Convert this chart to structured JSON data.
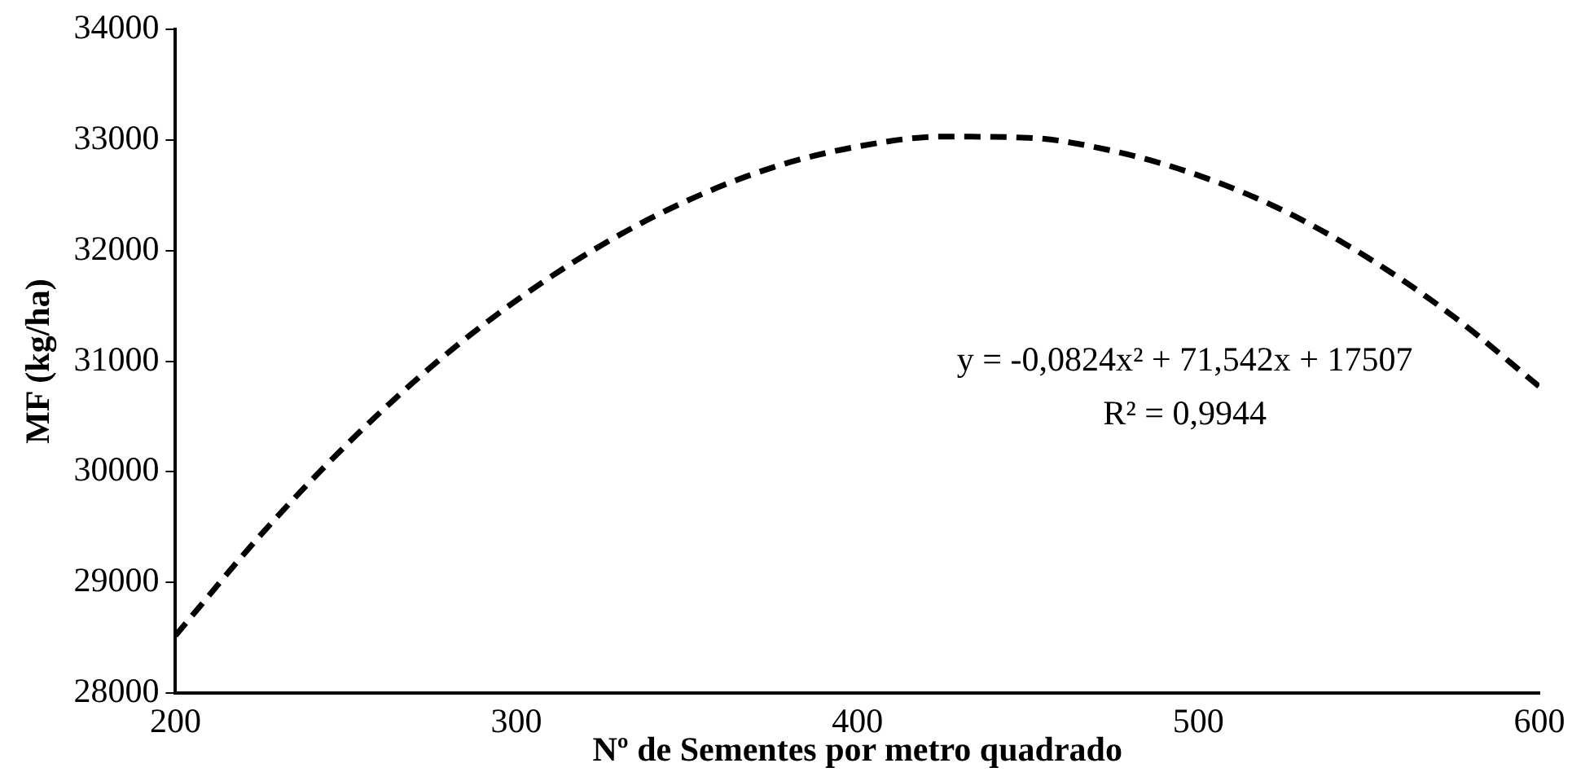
{
  "chart_data": {
    "type": "line",
    "xlabel": "Nº de Sementes por metro quadrado",
    "ylabel": "MF (kg/ha)",
    "x": [
      200,
      225,
      250,
      275,
      300,
      325,
      350,
      375,
      400,
      425,
      450,
      475,
      500,
      525,
      550,
      575,
      600
    ],
    "series": [
      {
        "color": "#000000",
        "values": [
          28520,
          29430,
          30240,
          30950,
          31550,
          32050,
          32450,
          32750,
          32940,
          33030,
          33020,
          32900,
          32680,
          32360,
          31930,
          31400,
          30770
        ]
      }
    ],
    "xlim": [
      200,
      600
    ],
    "xticks": [
      200,
      300,
      400,
      500,
      600
    ],
    "ylim": [
      28000,
      34000
    ],
    "yticks": [
      28000,
      29000,
      30000,
      31000,
      32000,
      33000,
      34000
    ],
    "grid": false,
    "legend": false,
    "marker": "none",
    "line_style": "dashed",
    "annotations": [
      "y = -0,0824x² + 71,542x + 17507",
      "R² = 0,9944"
    ]
  }
}
